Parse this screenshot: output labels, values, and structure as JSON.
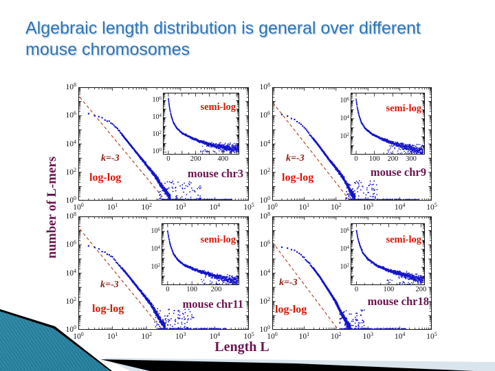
{
  "slide": {
    "title": "Algebraic length distribution is general over different mouse chromosomes",
    "colors": {
      "title_blue": "#2e75b6",
      "scatter_blue": "#1414cc",
      "guide_red": "#b5452c",
      "scale_label_red": "#dd1505",
      "slope_label_red": "#8e1c10",
      "chromosome_purple": "#6b1450",
      "axis_black": "#121212",
      "teal_dark": "#15708f",
      "teal_light": "#5aa3b8",
      "pale_band": "#d9e4ed",
      "swoosh_black": "#000000"
    }
  },
  "figure": {
    "ylabel": "number of L-mers",
    "xlabel": "Length L",
    "tick_base": "10"
  },
  "chart_data": [
    {
      "type": "scatter",
      "panel": "top-left",
      "chromosome_label": "mouse chr3",
      "scale_label": "log-log",
      "slope_label": "k=-3",
      "x_log_range": [
        0,
        5
      ],
      "y_log_range": [
        0,
        8
      ],
      "x_tick_exponents": [
        0,
        1,
        2,
        3,
        4,
        5
      ],
      "y_tick_exponents": [
        0,
        2,
        4,
        6,
        8
      ],
      "guide_line_points": [
        [
          1.1,
          20000000
        ],
        [
          360,
          1
        ]
      ],
      "ridge_log10_profile": [
        [
          0,
          6.3
        ],
        [
          0.3,
          6.15
        ],
        [
          0.6,
          5.95
        ],
        [
          0.9,
          5.6
        ],
        [
          1.1,
          5.2
        ],
        [
          1.3,
          4.6
        ],
        [
          1.5,
          4.0
        ],
        [
          1.7,
          3.4
        ],
        [
          1.9,
          2.8
        ],
        [
          2.1,
          2.2
        ],
        [
          2.3,
          1.6
        ],
        [
          2.45,
          1.0
        ],
        [
          2.6,
          0.5
        ],
        [
          2.7,
          0.25
        ]
      ],
      "floor_tail": {
        "x_log_range": [
          2.45,
          4.55
        ],
        "count": 150
      },
      "low_cloud": {
        "x_log_range": [
          2.3,
          3.6
        ],
        "count": 100,
        "y_log_max": 1.4
      },
      "seed": 101,
      "inset": {
        "scale_label": "semi-log",
        "x_range": [
          -40,
          520
        ],
        "x_ticks": [
          0,
          200,
          400
        ],
        "x_minor_step": 50,
        "x_max_data": 515,
        "y_log_range": [
          -0.3,
          6.9
        ],
        "y_tick_exponents": [
          0,
          2,
          4,
          6
        ],
        "profile": [
          [
            0,
            6.2
          ],
          [
            8,
            5.2
          ],
          [
            18,
            4.4
          ],
          [
            35,
            3.5
          ],
          [
            60,
            2.8
          ],
          [
            100,
            2.2
          ],
          [
            150,
            1.8
          ],
          [
            220,
            1.3
          ],
          [
            300,
            0.9
          ],
          [
            400,
            0.55
          ],
          [
            500,
            0.35
          ]
        ]
      }
    },
    {
      "type": "scatter",
      "panel": "top-right",
      "chromosome_label": "mouse chr9",
      "scale_label": "log-log",
      "slope_label": "k=-3",
      "x_log_range": [
        0,
        5
      ],
      "y_log_range": [
        0,
        8
      ],
      "x_tick_exponents": [
        0,
        1,
        2,
        3,
        4,
        5
      ],
      "y_tick_exponents": [
        0,
        2,
        4,
        6,
        8
      ],
      "guide_line_points": [
        [
          1.05,
          8000000
        ],
        [
          275,
          1
        ]
      ],
      "ridge_log10_profile": [
        [
          0,
          6.05
        ],
        [
          0.3,
          6.1
        ],
        [
          0.5,
          5.95
        ],
        [
          0.8,
          5.55
        ],
        [
          1.0,
          5.15
        ],
        [
          1.2,
          4.6
        ],
        [
          1.4,
          4.05
        ],
        [
          1.6,
          3.45
        ],
        [
          1.8,
          2.85
        ],
        [
          2.0,
          2.3
        ],
        [
          2.2,
          1.7
        ],
        [
          2.35,
          1.1
        ],
        [
          2.5,
          0.5
        ],
        [
          2.6,
          0.2
        ]
      ],
      "floor_tail": {
        "x_log_range": [
          2.4,
          4.6
        ],
        "count": 140
      },
      "low_cloud": {
        "x_log_range": [
          2.3,
          3.3
        ],
        "count": 85,
        "y_log_max": 1.4
      },
      "seed": 202,
      "inset": {
        "scale_label": "semi-log",
        "x_range": [
          -30,
          375
        ],
        "x_ticks": [
          0,
          100,
          200,
          300
        ],
        "x_minor_step": 50,
        "x_max_data": 365,
        "y_log_range": [
          0,
          6.9
        ],
        "y_tick_exponents": [
          2,
          4,
          6
        ],
        "profile": [
          [
            0,
            6.15
          ],
          [
            6,
            5.3
          ],
          [
            14,
            4.5
          ],
          [
            28,
            3.6
          ],
          [
            50,
            2.9
          ],
          [
            85,
            2.3
          ],
          [
            130,
            1.85
          ],
          [
            190,
            1.35
          ],
          [
            260,
            0.9
          ],
          [
            330,
            0.55
          ],
          [
            360,
            0.45
          ]
        ]
      }
    },
    {
      "type": "scatter",
      "panel": "bottom-left",
      "chromosome_label": "mouse chr11",
      "scale_label": "log-log",
      "slope_label": "k=-3",
      "x_log_range": [
        0,
        5
      ],
      "y_log_range": [
        0,
        8
      ],
      "x_tick_exponents": [
        0,
        1,
        2,
        3,
        4,
        5
      ],
      "y_tick_exponents": [
        0,
        2,
        4,
        6,
        8
      ],
      "guide_line_points": [
        [
          1.1,
          13000000
        ],
        [
          290,
          1
        ]
      ],
      "ridge_log10_profile": [
        [
          0,
          6.1
        ],
        [
          0.25,
          5.95
        ],
        [
          0.5,
          5.8
        ],
        [
          0.75,
          5.5
        ],
        [
          1.0,
          5.1
        ],
        [
          1.2,
          4.55
        ],
        [
          1.4,
          4.0
        ],
        [
          1.6,
          3.4
        ],
        [
          1.8,
          2.8
        ],
        [
          2.0,
          2.2
        ],
        [
          2.15,
          1.7
        ],
        [
          2.3,
          1.1
        ],
        [
          2.45,
          0.5
        ],
        [
          2.55,
          0.25
        ]
      ],
      "floor_tail": {
        "x_log_range": [
          2.35,
          4.35
        ],
        "count": 130
      },
      "low_cloud": {
        "x_log_range": [
          2.2,
          3.4
        ],
        "count": 90,
        "y_log_max": 1.5
      },
      "seed": 303,
      "inset": {
        "scale_label": "semi-log",
        "x_range": [
          -25,
          295
        ],
        "x_ticks": [
          0,
          100,
          200
        ],
        "x_minor_step": 25,
        "x_max_data": 288,
        "y_log_range": [
          0,
          6.9
        ],
        "y_tick_exponents": [
          2,
          4,
          6
        ],
        "profile": [
          [
            0,
            6.05
          ],
          [
            5,
            5.2
          ],
          [
            12,
            4.4
          ],
          [
            24,
            3.5
          ],
          [
            42,
            2.8
          ],
          [
            70,
            2.2
          ],
          [
            110,
            1.75
          ],
          [
            160,
            1.3
          ],
          [
            210,
            0.9
          ],
          [
            260,
            0.55
          ],
          [
            285,
            0.45
          ]
        ]
      }
    },
    {
      "type": "scatter",
      "panel": "bottom-right",
      "chromosome_label": "mouse chr18",
      "scale_label": "log-log",
      "slope_label": "k=-3",
      "x_log_range": [
        0,
        5
      ],
      "y_log_range": [
        0,
        8
      ],
      "x_tick_exponents": [
        0,
        1,
        2,
        3,
        4,
        5
      ],
      "y_tick_exponents": [
        0,
        2,
        4,
        6,
        8
      ],
      "guide_line_points": [
        [
          1.0,
          1600000
        ],
        [
          117,
          1
        ]
      ],
      "ridge_log10_profile": [
        [
          0,
          6.08
        ],
        [
          0.2,
          5.9
        ],
        [
          0.45,
          5.75
        ],
        [
          0.7,
          5.6
        ],
        [
          0.9,
          5.3
        ],
        [
          1.1,
          4.85
        ],
        [
          1.3,
          4.3
        ],
        [
          1.5,
          3.7
        ],
        [
          1.7,
          3.0
        ],
        [
          1.9,
          2.3
        ],
        [
          2.05,
          1.7
        ],
        [
          2.2,
          1.0
        ],
        [
          2.35,
          0.45
        ],
        [
          2.45,
          0.2
        ]
      ],
      "floor_tail": {
        "x_log_range": [
          2.15,
          4.2
        ],
        "count": 110
      },
      "low_cloud": {
        "x_log_range": [
          2.1,
          2.9
        ],
        "count": 70,
        "y_log_max": 1.5
      },
      "seed": 404,
      "inset": {
        "scale_label": "semi-log",
        "x_range": [
          -18,
          212
        ],
        "x_ticks": [
          0,
          100,
          200
        ],
        "x_minor_step": 25,
        "x_max_data": 206,
        "y_log_range": [
          0,
          6.9
        ],
        "y_tick_exponents": [
          2,
          4,
          6
        ],
        "profile": [
          [
            0,
            6.1
          ],
          [
            4,
            5.3
          ],
          [
            10,
            4.5
          ],
          [
            20,
            3.6
          ],
          [
            36,
            2.9
          ],
          [
            60,
            2.25
          ],
          [
            95,
            1.7
          ],
          [
            135,
            1.25
          ],
          [
            175,
            0.85
          ],
          [
            205,
            0.6
          ]
        ]
      }
    }
  ]
}
